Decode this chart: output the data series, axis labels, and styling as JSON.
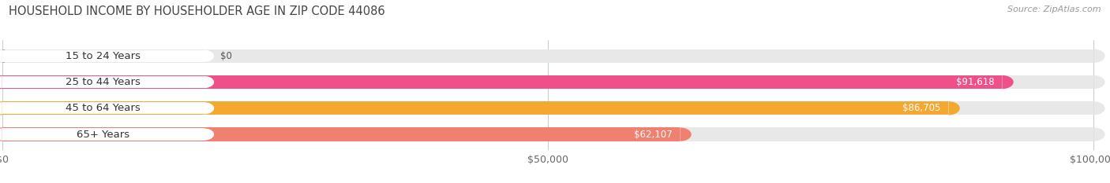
{
  "title": "HOUSEHOLD INCOME BY HOUSEHOLDER AGE IN ZIP CODE 44086",
  "source": "Source: ZipAtlas.com",
  "categories": [
    "15 to 24 Years",
    "25 to 44 Years",
    "45 to 64 Years",
    "65+ Years"
  ],
  "values": [
    0,
    91618,
    86705,
    62107
  ],
  "bar_colors": [
    "#a8a8d8",
    "#f0508a",
    "#f5a830",
    "#f08070"
  ],
  "bar_bg_color": "#e8e8e8",
  "max_value": 100000,
  "x_ticks": [
    0,
    50000,
    100000
  ],
  "x_tick_labels": [
    "$0",
    "$50,000",
    "$100,000"
  ],
  "value_labels": [
    "$0",
    "$91,618",
    "$86,705",
    "$62,107"
  ],
  "background_color": "#ffffff",
  "title_fontsize": 10.5,
  "source_fontsize": 8,
  "label_fontsize": 9.5,
  "value_fontsize": 8.5
}
